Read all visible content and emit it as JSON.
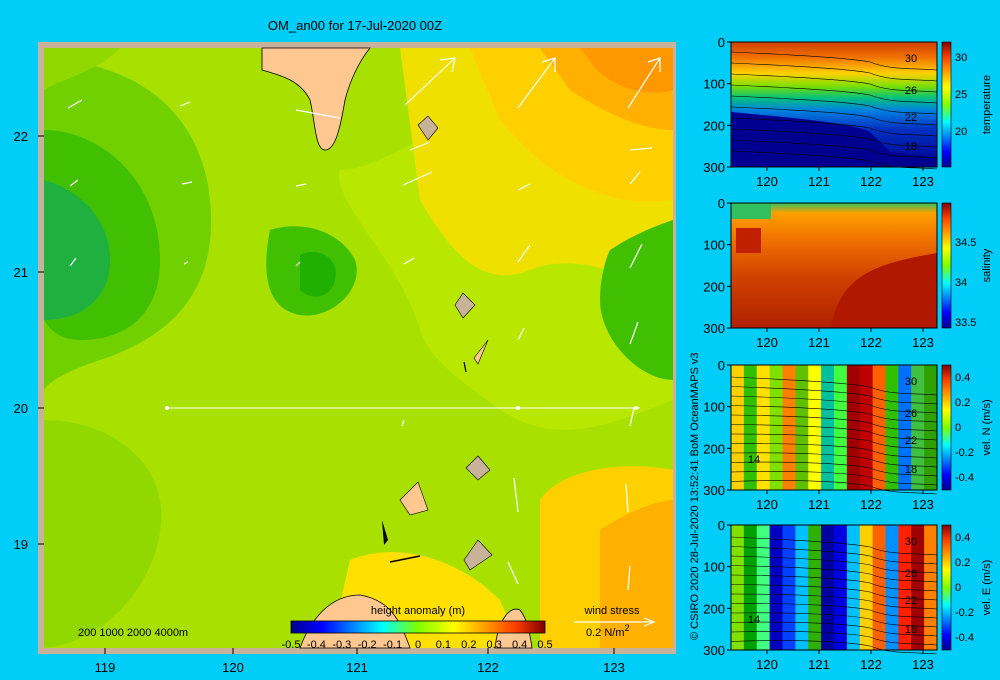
{
  "title": "OM_an00 for 17-Jul-2020 00Z",
  "map": {
    "lon_ticks": [
      "119",
      "120",
      "121",
      "122",
      "123"
    ],
    "lat_ticks": [
      "22",
      "21",
      "20",
      "19"
    ],
    "depth_legend": "200  1000  2000  4000m",
    "colorbar_label": "height anomaly (m)",
    "colorbar_ticks": [
      "-0.5",
      "-0.4",
      "-0.3",
      "-0.2",
      "-0.1",
      "0",
      "0.1",
      "0.2",
      "0.3",
      "0.4",
      "0.5"
    ],
    "wind_label": "wind stress",
    "wind_scale": "0.2 N/m",
    "wind_scale_sup": "2"
  },
  "credit": "© CSIRO 2020  28-Jul-2020 13:52:41 BoM OceanMAPS v3",
  "sections": [
    {
      "id": "temperature",
      "label": "temperature",
      "cb_ticks": [
        "30",
        "25",
        "20"
      ],
      "contour_labels": [
        "30",
        "26",
        "22",
        "18"
      ]
    },
    {
      "id": "salinity",
      "label": "salinity",
      "cb_ticks": [
        "34.5",
        "34",
        "33.5"
      ],
      "contour_labels": []
    },
    {
      "id": "veln",
      "label": "vel. N  (m/s)",
      "cb_ticks": [
        "0.4",
        "0.2",
        "0",
        "-0.2",
        "-0.4"
      ],
      "contour_labels": [
        "30",
        "26",
        "22",
        "18",
        "14"
      ]
    },
    {
      "id": "vele",
      "label": "vel. E  (m/s)",
      "cb_ticks": [
        "0.4",
        "0.2",
        "0",
        "-0.2",
        "-0.4"
      ],
      "contour_labels": [
        "30",
        "26",
        "22",
        "18",
        "14"
      ]
    }
  ],
  "section_axes": {
    "x_ticks": [
      "120",
      "121",
      "122",
      "123"
    ],
    "y_ticks": [
      "0",
      "100",
      "200",
      "300"
    ]
  }
}
